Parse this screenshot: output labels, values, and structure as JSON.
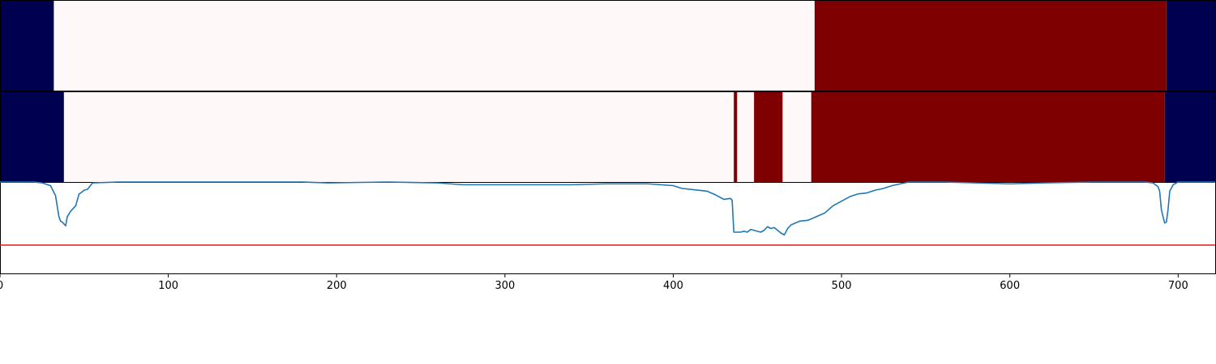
{
  "chart_data": {
    "type": "line",
    "title": "",
    "xlabel": "",
    "ylabel": "",
    "xlim": [
      0,
      722
    ],
    "xticks": [
      0,
      100,
      200,
      300,
      400,
      500,
      600,
      700
    ],
    "grid": false,
    "legend": "none",
    "colors": {
      "low": "#000050",
      "mid": "#FFF8F8",
      "high": "#7F0000",
      "line": "#1F77B4",
      "threshold": "#E41A1C",
      "frame": "#000000"
    },
    "heatmap_rows": [
      {
        "segments": [
          {
            "start": 0,
            "end": 32,
            "level": "low"
          },
          {
            "start": 32,
            "end": 484,
            "level": "mid"
          },
          {
            "start": 484,
            "end": 693,
            "level": "high"
          },
          {
            "start": 693,
            "end": 722,
            "level": "low"
          }
        ]
      },
      {
        "segments": [
          {
            "start": 0,
            "end": 38,
            "level": "low"
          },
          {
            "start": 38,
            "end": 436,
            "level": "mid"
          },
          {
            "start": 436,
            "end": 438,
            "level": "high"
          },
          {
            "start": 438,
            "end": 448,
            "level": "mid"
          },
          {
            "start": 448,
            "end": 465,
            "level": "high"
          },
          {
            "start": 465,
            "end": 482,
            "level": "mid"
          },
          {
            "start": 482,
            "end": 692,
            "level": "high"
          },
          {
            "start": 692,
            "end": 722,
            "level": "low"
          }
        ]
      }
    ],
    "line_panel": {
      "ylim": [
        0,
        1
      ],
      "threshold": 0.31,
      "series": [
        {
          "x": [
            0,
            20,
            25,
            30,
            33,
            35,
            36,
            37,
            39,
            40,
            42,
            43,
            45,
            47,
            48,
            50,
            52,
            55,
            70,
            100,
            150,
            180,
            195,
            230,
            260,
            275,
            300,
            340,
            360,
            385,
            400,
            405,
            415,
            420,
            425,
            430,
            434,
            435,
            436,
            440,
            442,
            444,
            446,
            448,
            450,
            452,
            454,
            456,
            458,
            460,
            462,
            464,
            466,
            468,
            470,
            475,
            480,
            485,
            490,
            495,
            500,
            505,
            510,
            515,
            520,
            525,
            530,
            535,
            540,
            560,
            580,
            600,
            620,
            650,
            680,
            685,
            688,
            689,
            690,
            691,
            692,
            693,
            694,
            695,
            697,
            700,
            705,
            722
          ],
          "y": [
            1.0,
            1.0,
            0.99,
            0.96,
            0.85,
            0.62,
            0.57,
            0.56,
            0.52,
            0.62,
            0.68,
            0.7,
            0.74,
            0.87,
            0.88,
            0.91,
            0.92,
            0.99,
            1.0,
            1.0,
            1.0,
            1.0,
            0.99,
            1.0,
            0.99,
            0.97,
            0.97,
            0.97,
            0.98,
            0.98,
            0.96,
            0.93,
            0.91,
            0.9,
            0.86,
            0.81,
            0.82,
            0.8,
            0.45,
            0.45,
            0.46,
            0.45,
            0.48,
            0.47,
            0.46,
            0.45,
            0.47,
            0.51,
            0.49,
            0.5,
            0.47,
            0.44,
            0.42,
            0.49,
            0.53,
            0.57,
            0.58,
            0.62,
            0.66,
            0.74,
            0.79,
            0.84,
            0.87,
            0.88,
            0.91,
            0.93,
            0.96,
            0.98,
            1.0,
            1.0,
            0.99,
            0.98,
            0.99,
            1.0,
            1.0,
            0.99,
            0.95,
            0.9,
            0.7,
            0.62,
            0.55,
            0.56,
            0.7,
            0.9,
            0.97,
            1.0,
            1.0,
            1.0
          ]
        }
      ]
    }
  }
}
